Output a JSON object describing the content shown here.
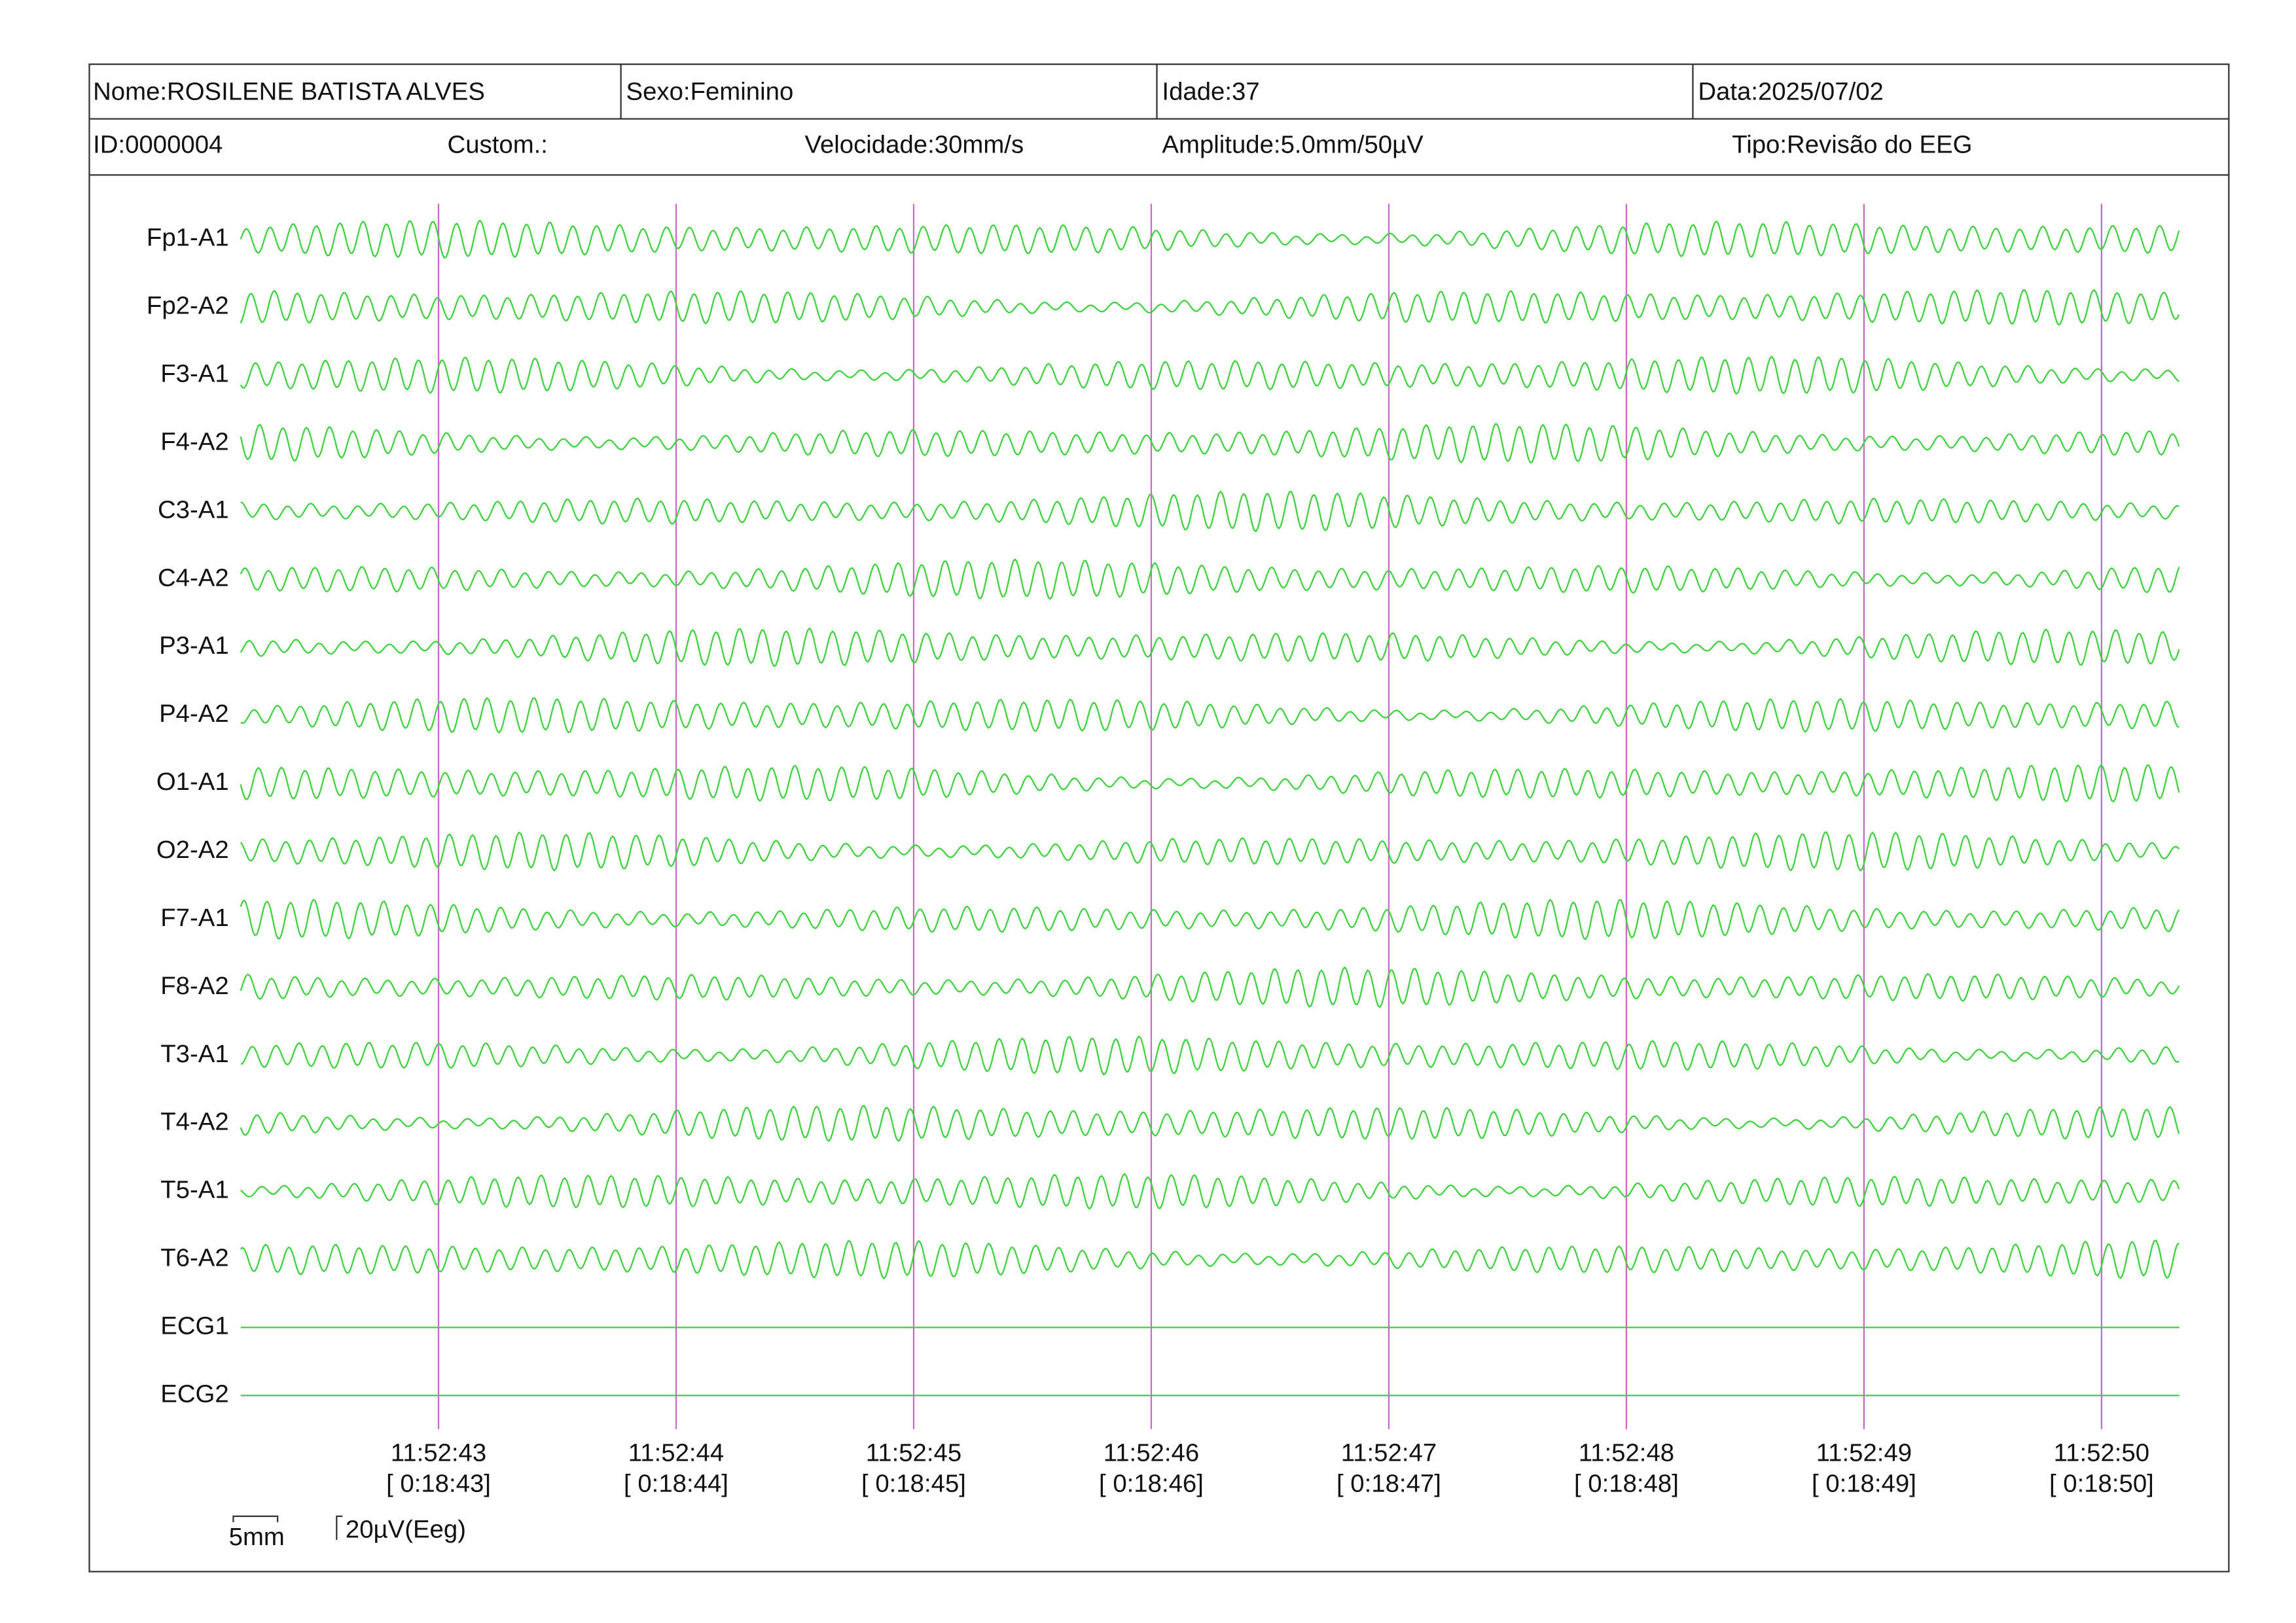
{
  "header": {
    "row1": [
      "Nome:ROSILENE BATISTA ALVES",
      "Sexo:Feminino",
      "Idade:37",
      "Data:2025/07/02"
    ],
    "row2": [
      "ID:0000004",
      "Custom.:",
      "Velocidade:30mm/s",
      "Amplitude:5.0mm/50µV",
      "Tipo:Revisão do EEG"
    ]
  },
  "channels": [
    "Fp1-A1",
    "Fp2-A2",
    "F3-A1",
    "F4-A2",
    "C3-A1",
    "C4-A2",
    "P3-A1",
    "P4-A2",
    "O1-A1",
    "O2-A2",
    "F7-A1",
    "F8-A2",
    "T3-A1",
    "T4-A2",
    "T5-A1",
    "T6-A2",
    "ECG1",
    "ECG2"
  ],
  "time_marks": [
    {
      "time": "11:52:43",
      "elapsed": "[ 0:18:43]"
    },
    {
      "time": "11:52:44",
      "elapsed": "[ 0:18:44]"
    },
    {
      "time": "11:52:45",
      "elapsed": "[ 0:18:45]"
    },
    {
      "time": "11:52:46",
      "elapsed": "[ 0:18:46]"
    },
    {
      "time": "11:52:47",
      "elapsed": "[ 0:18:47]"
    },
    {
      "time": "11:52:48",
      "elapsed": "[ 0:18:48]"
    },
    {
      "time": "11:52:49",
      "elapsed": "[ 0:18:49]"
    },
    {
      "time": "11:52:50",
      "elapsed": "[ 0:18:50]"
    }
  ],
  "scale": {
    "time": "5mm",
    "amplitude": "20µV(Eeg)"
  }
}
